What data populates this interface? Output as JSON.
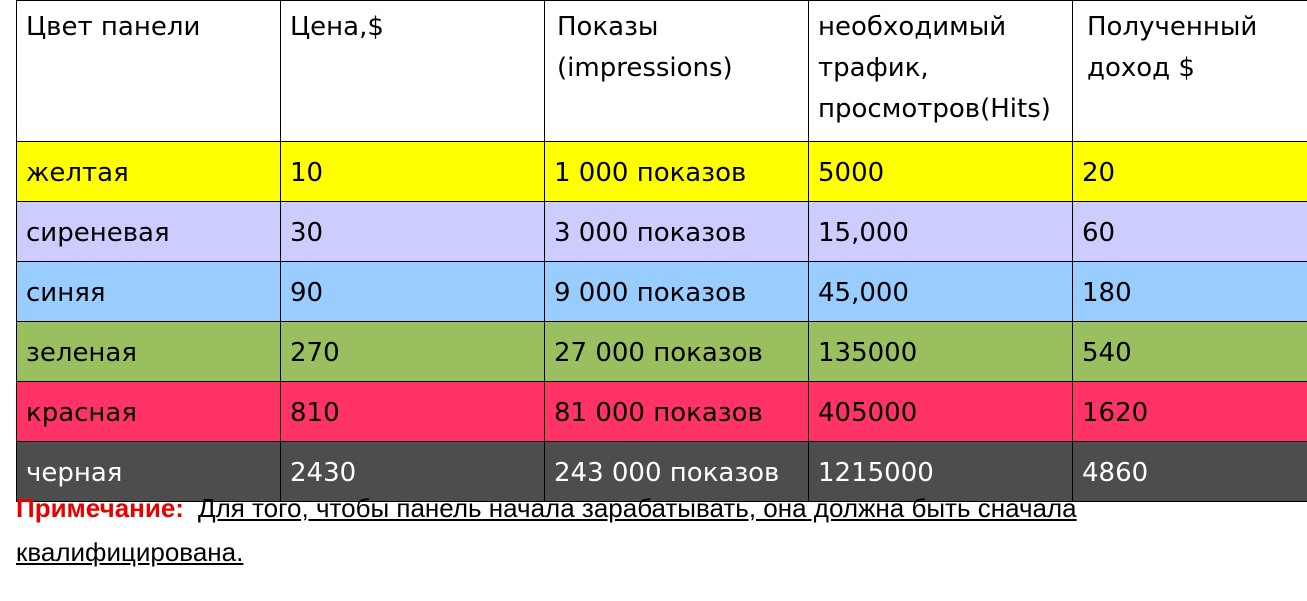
{
  "table": {
    "headers": [
      "Цвет панели",
      "Цена,$",
      "Показы (impressions)",
      "необходимый трафик, просмотров(Hits)",
      "Полученный доход $"
    ],
    "rows": [
      {
        "bg": "#ffff00",
        "fg": "#000000",
        "cells": [
          "желтая",
          "10",
          "1 000 показов",
          "5000",
          "20"
        ]
      },
      {
        "bg": "#ccccff",
        "fg": "#000000",
        "cells": [
          "сиреневая",
          "30",
          "3 000 показов",
          "15,000",
          "60"
        ]
      },
      {
        "bg": "#99ccff",
        "fg": "#000000",
        "cells": [
          "синяя",
          "90",
          "9 000 показов",
          "45,000",
          "180"
        ]
      },
      {
        "bg": "#99bf5f",
        "fg": "#000000",
        "cells": [
          "зеленая",
          "270",
          "27 000 показов",
          "135000",
          "540"
        ]
      },
      {
        "bg": "#ff3366",
        "fg": "#000000",
        "cells": [
          "красная",
          "810",
          "81 000 показов",
          "405000",
          "1620"
        ]
      },
      {
        "bg": "#4d4d4d",
        "fg": "#ffffff",
        "cells": [
          "черная",
          "2430",
          "243 000 показов",
          "1215000",
          "4860"
        ]
      }
    ]
  },
  "note": {
    "label": "Примечание:",
    "text": "Для того, чтобы панель начала зарабатывать, она должна быть сначала квалифицирована.",
    "label_color": "#e60000"
  }
}
